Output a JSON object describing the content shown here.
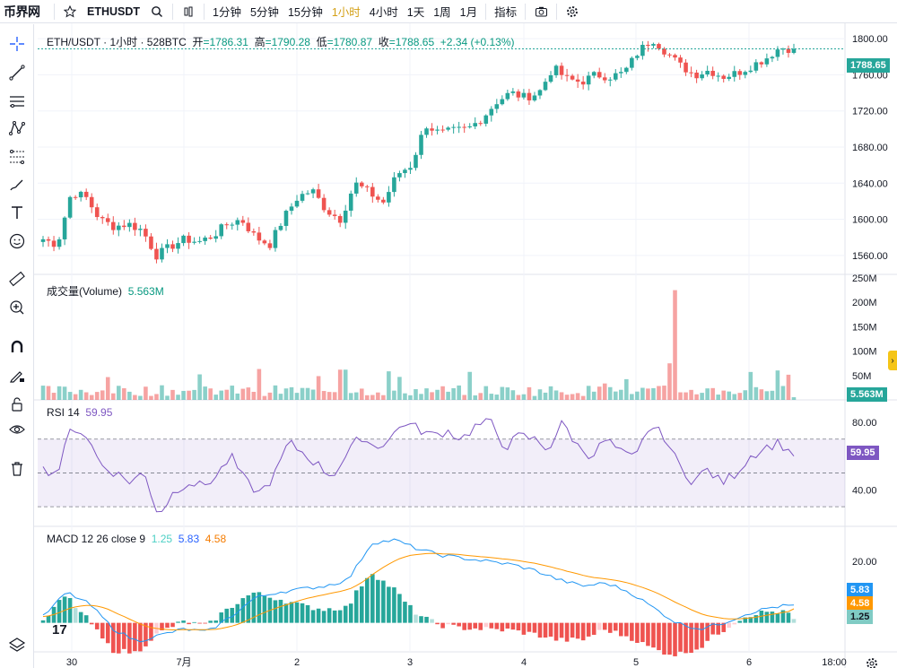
{
  "topbar": {
    "logo": "币界网",
    "symbol": "ETHUSDT",
    "intervals": [
      "1分钟",
      "5分钟",
      "15分钟",
      "1小时",
      "4小时",
      "1天",
      "1周",
      "1月"
    ],
    "active_interval": "1小时",
    "indicators_label": "指标"
  },
  "legend_main": {
    "title": "ETH/USDT · 1小时 · 528BTC",
    "open_label": "开",
    "open": "=1786.31",
    "high_label": "高",
    "high": "=1790.28",
    "low_label": "低",
    "low": "=1780.87",
    "close_label": "收",
    "close": "=1788.65",
    "change": "+2.34 (+0.13%)"
  },
  "legend_volume": {
    "label": "成交量(Volume)",
    "value": "5.563M"
  },
  "legend_rsi": {
    "label": "RSI 14",
    "value": "59.95"
  },
  "legend_macd": {
    "label": "MACD 12 26 close 9",
    "hist": "1.25",
    "macd": "5.83",
    "signal": "4.58"
  },
  "price_axis": [
    "1800.00",
    "1760.00",
    "1720.00",
    "1680.00",
    "1640.00",
    "1600.00",
    "1560.00"
  ],
  "volume_axis": [
    "250M",
    "200M",
    "150M",
    "100M",
    "50M"
  ],
  "rsi_axis": [
    "80.00",
    "40.00"
  ],
  "macd_axis": [
    "20.00"
  ],
  "time_axis": [
    "30",
    "7月",
    "2",
    "3",
    "4",
    "5",
    "6",
    "18:00"
  ],
  "badges": {
    "price": "1788.65",
    "volume": "5.563M",
    "rsi": "59.95",
    "macd": "5.83",
    "signal": "4.58",
    "hist": "1.25"
  },
  "colors": {
    "up": "#26a69a",
    "down": "#ef5350",
    "rsi": "#7e57c2",
    "macd": "#2196f3",
    "signal": "#ff9800",
    "active_interval": "#d4a017"
  },
  "chart_data": [
    {
      "type": "candlestick",
      "title": "ETH/USDT · 1小时 · 528BTC",
      "x_ticks": [
        "30",
        "7月",
        "2",
        "3",
        "4",
        "5",
        "6",
        "18:00"
      ],
      "ylim": [
        1545,
        1815
      ],
      "close_path_approx": [
        1578,
        1572,
        1630,
        1625,
        1600,
        1592,
        1595,
        1588,
        1560,
        1570,
        1578,
        1575,
        1582,
        1595,
        1600,
        1580,
        1572,
        1602,
        1625,
        1632,
        1610,
        1600,
        1640,
        1630,
        1618,
        1650,
        1660,
        1705,
        1695,
        1698,
        1700,
        1712,
        1730,
        1740,
        1735,
        1740,
        1768,
        1755,
        1752,
        1760,
        1758,
        1762,
        1785,
        1800,
        1785,
        1770,
        1760,
        1765,
        1758,
        1762,
        1770,
        1778,
        1790,
        1788.65
      ],
      "last": {
        "open": 1786.31,
        "high": 1790.28,
        "low": 1780.87,
        "close": 1788.65
      }
    },
    {
      "type": "bar",
      "title": "成交量(Volume)",
      "ylim": [
        0,
        250
      ],
      "unit": "M",
      "peak_value": 225,
      "last_value": 5.563
    },
    {
      "type": "line",
      "title": "RSI 14",
      "ylim": [
        20,
        90
      ],
      "values_approx": [
        52,
        50,
        78,
        72,
        55,
        50,
        45,
        50,
        25,
        38,
        45,
        42,
        48,
        60,
        45,
        38,
        48,
        68,
        62,
        55,
        48,
        60,
        72,
        65,
        70,
        80,
        76,
        72,
        75,
        70,
        78,
        80,
        65,
        72,
        70,
        64,
        80,
        66,
        60,
        70,
        62,
        58,
        78,
        72,
        55,
        45,
        52,
        44,
        50,
        60,
        65,
        68,
        59.95
      ],
      "overbought": 70,
      "oversold": 30
    },
    {
      "type": "line",
      "title": "MACD 12 26 close 9",
      "series": [
        {
          "name": "MACD",
          "last": 5.83
        },
        {
          "name": "Signal",
          "last": 4.58
        },
        {
          "name": "Histogram",
          "last": 1.25
        }
      ],
      "ylim": [
        -8,
        30
      ]
    }
  ]
}
